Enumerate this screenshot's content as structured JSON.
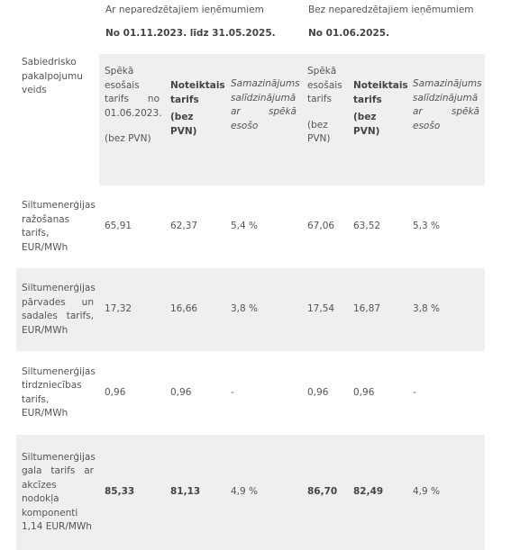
{
  "header": {
    "groups": [
      {
        "title": "Ar neparedzētajiem ieņēmumiem",
        "period": "No 01.11.2023. līdz 31.05.2025."
      },
      {
        "title": "Bez neparedzētajiem ieņēmumiem",
        "period": "No 01.06.2025."
      }
    ],
    "row_label": "Sabiedrisko pakalpojumu veids",
    "columns": [
      {
        "text": "Spēkā esošais tarifs no 01.06.2023.",
        "note": "(bez PVN)"
      },
      {
        "text": "Noteiktais tarifs",
        "note": "(bez PVN)"
      },
      {
        "text": "Samazinājums salīdzinājumā ar spēkā esošo"
      },
      {
        "text": "Spēkā esošais tarifs",
        "note": "(bez PVN)"
      },
      {
        "text": "Noteiktais tarifs",
        "note": "(bez PVN)"
      },
      {
        "text": "Samazinājums salīdzinājumā ar spēkā esošo"
      }
    ]
  },
  "table": {
    "rows": [
      [
        "Siltumenerģijas ražošanas tarifs, EUR/MWh",
        "65,91",
        "62,37",
        "5,4 %",
        "67,06",
        "63,52",
        "5,3 %"
      ],
      [
        "Siltumenerģijas pārvades un sadales tarifs, EUR/MWh",
        "17,32",
        "16,66",
        "3,8 %",
        "17,54",
        "16,87",
        "3,8 %"
      ],
      [
        "Siltumenerģijas tirdzniecības tarifs, EUR/MWh",
        "0,96",
        "0,96",
        "-",
        "0,96",
        "0,96",
        "-"
      ],
      [
        "Siltumenerģijas gala tarifs ar akcīzes nodokļa komponenti 1,14 EUR/MWh",
        "85,33",
        "81,13",
        "4,9 %",
        "86,70",
        "82,49",
        "4,9 %"
      ]
    ]
  }
}
